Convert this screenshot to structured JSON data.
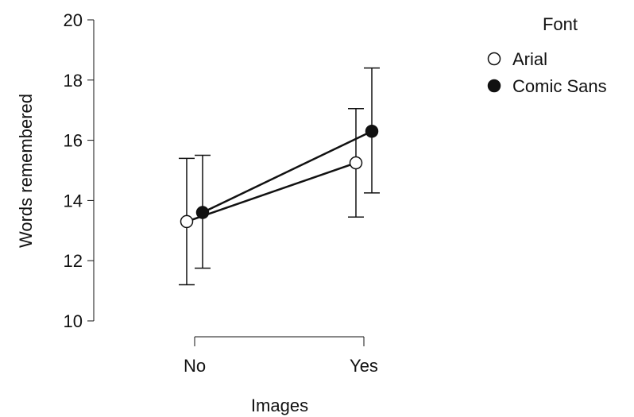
{
  "chart_data": {
    "type": "line",
    "xlabel": "Images",
    "ylabel": "Words remembered",
    "categories": [
      "No",
      "Yes"
    ],
    "ylim": [
      10,
      20
    ],
    "yticks": [
      "10",
      "12",
      "14",
      "16",
      "18",
      "20"
    ],
    "legend": {
      "title": "Font",
      "position": "top-right"
    },
    "grid": false,
    "series": [
      {
        "name": "Arial",
        "marker": "open-circle",
        "values": [
          13.3,
          15.25
        ],
        "error_low": [
          11.2,
          13.45
        ],
        "error_high": [
          15.4,
          17.05
        ]
      },
      {
        "name": "Comic Sans",
        "marker": "filled-circle",
        "values": [
          13.6,
          16.3
        ],
        "error_low": [
          11.75,
          14.25
        ],
        "error_high": [
          15.5,
          18.4
        ]
      }
    ],
    "colors": {
      "line": "#111111",
      "open_fill": "#ffffff",
      "filled_fill": "#111111"
    }
  }
}
